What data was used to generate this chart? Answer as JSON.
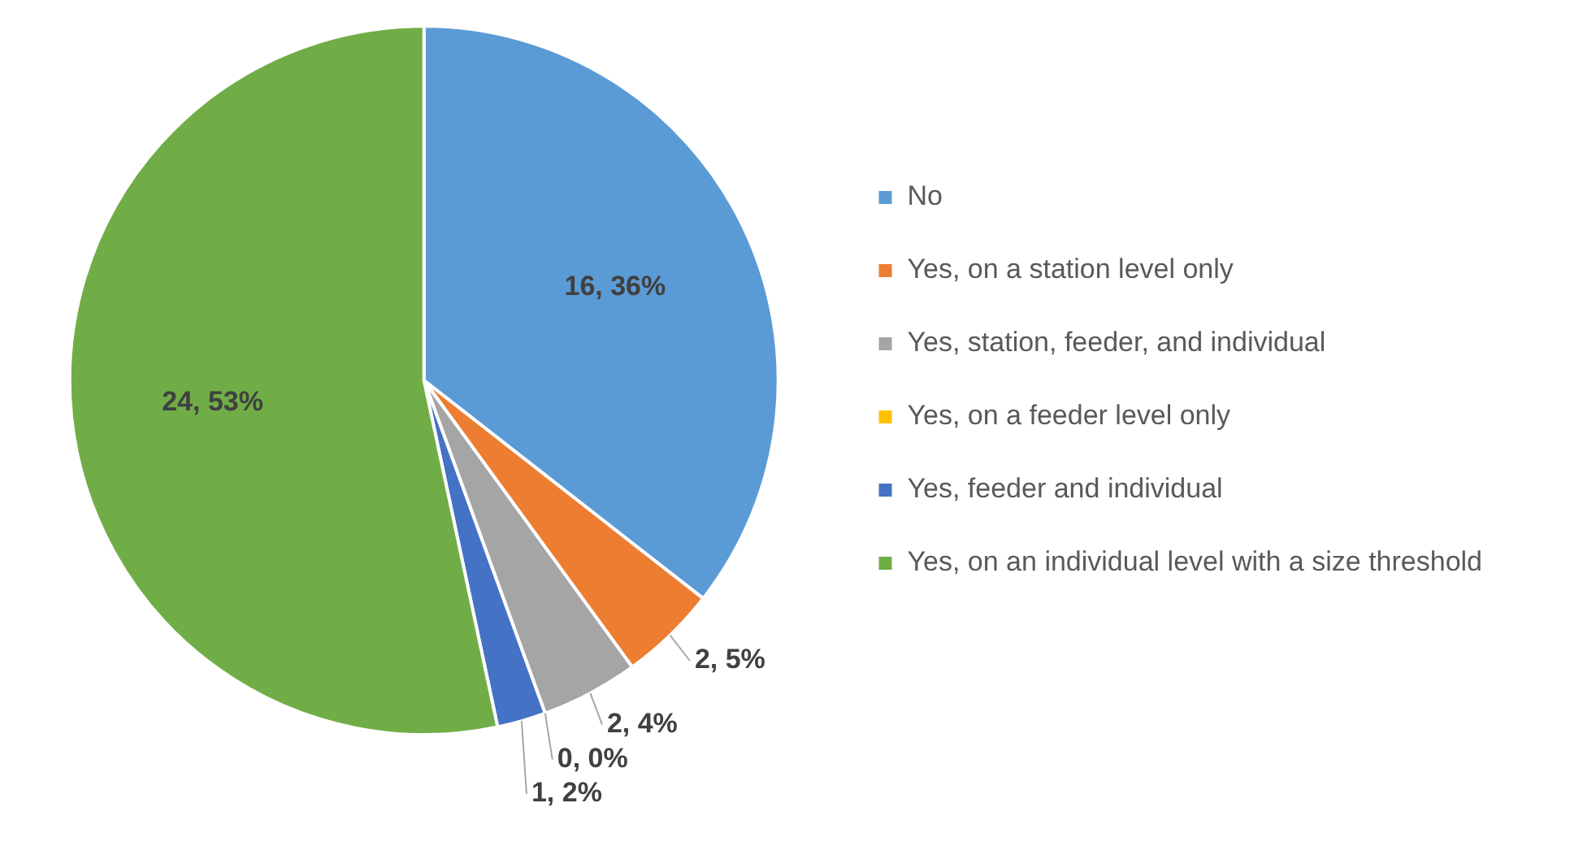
{
  "chart_data": {
    "type": "pie",
    "categories": [
      "No",
      "Yes, on a station level only",
      "Yes, station, feeder, and individual",
      "Yes, on a feeder level only",
      "Yes, feeder and individual",
      "Yes, on an individual level with a size threshold"
    ],
    "values": [
      16,
      2,
      2,
      0,
      1,
      24
    ],
    "colors": [
      "#5b9bd5",
      "#ed7d31",
      "#a5a5a5",
      "#ffc000",
      "#4472c4",
      "#70ad47"
    ],
    "value_labels": [
      "16, 36%",
      "2, 5%",
      "2, 4%",
      "0, 0%",
      "1, 2%",
      "24, 53%"
    ],
    "legend": "right"
  }
}
